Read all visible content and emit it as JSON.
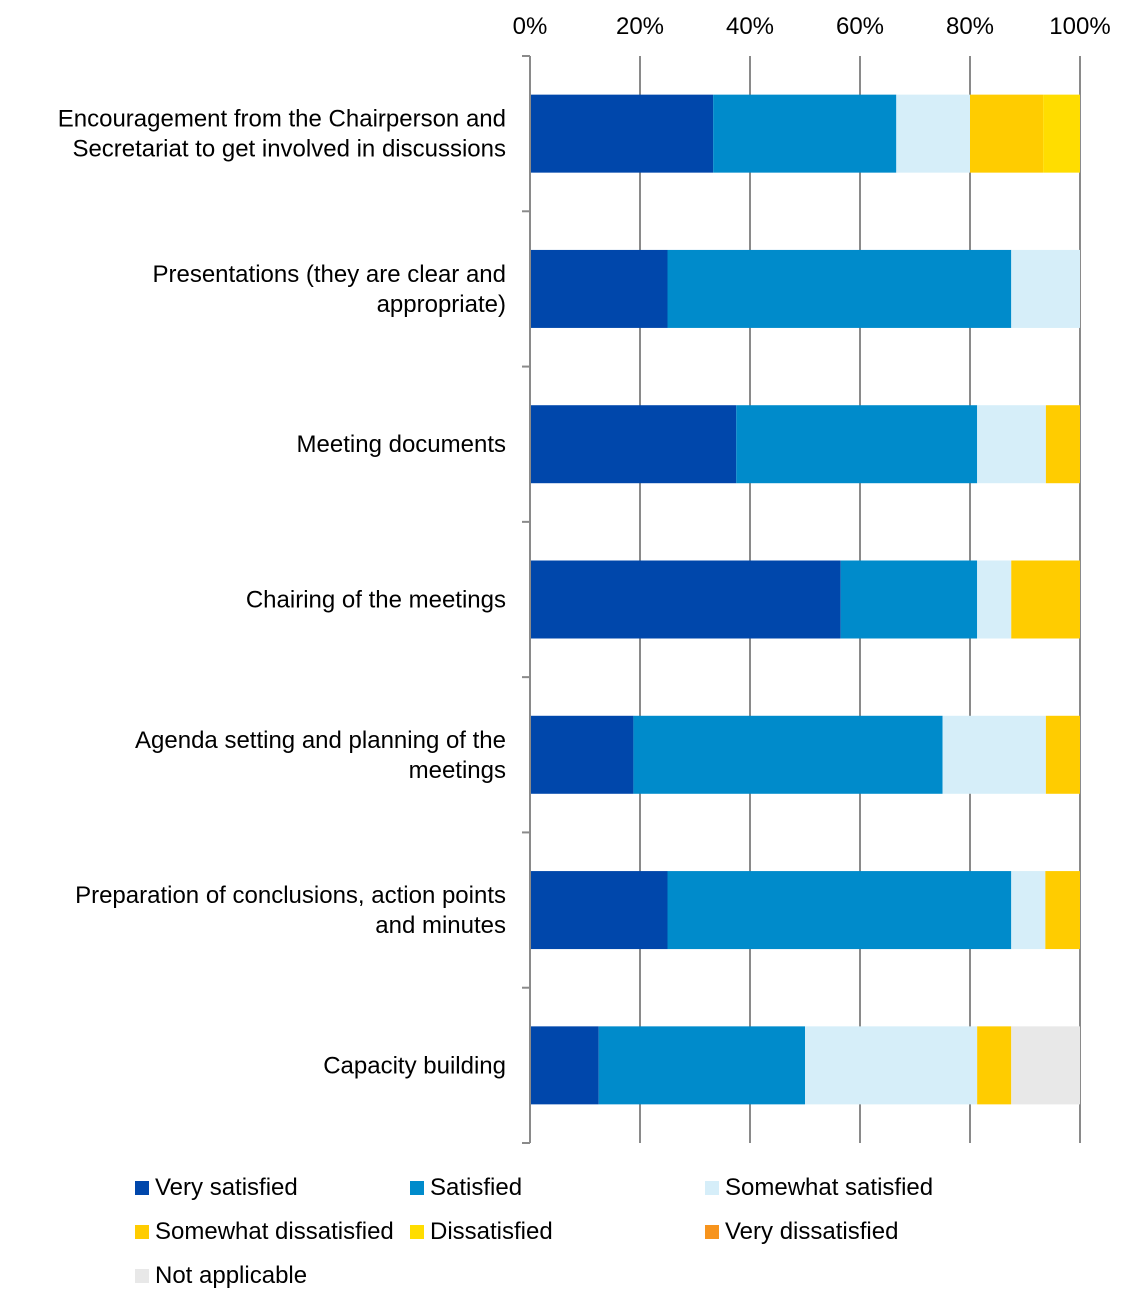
{
  "chart_data": {
    "type": "bar",
    "orientation": "horizontal",
    "stacked": "percent",
    "x_axis_position": "top",
    "xlim": [
      0,
      100
    ],
    "x_ticks": [
      "0%",
      "20%",
      "40%",
      "60%",
      "80%",
      "100%"
    ],
    "grid": true,
    "legend_position": "bottom",
    "categories": [
      [
        "Encouragement from the Chairperson and",
        "Secretariat to get involved in discussions"
      ],
      [
        "Presentations (they are clear and",
        "appropriate)"
      ],
      [
        "Meeting documents"
      ],
      [
        "Chairing of the meetings"
      ],
      [
        "Agenda setting and planning of the",
        "meetings"
      ],
      [
        "Preparation of conclusions, action points",
        "and minutes"
      ],
      [
        "Capacity building"
      ]
    ],
    "series": [
      {
        "name": "Very satisfied",
        "color": "#0047AB",
        "values": [
          33.3,
          25.0,
          37.5,
          56.5,
          18.8,
          25.0,
          12.5
        ]
      },
      {
        "name": "Satisfied",
        "color": "#008BCB",
        "values": [
          33.3,
          62.5,
          43.8,
          24.8,
          56.2,
          62.5,
          37.5
        ]
      },
      {
        "name": "Somewhat satisfied",
        "color": "#D6EEF9",
        "values": [
          13.4,
          12.5,
          12.5,
          6.2,
          18.8,
          6.2,
          31.3
        ]
      },
      {
        "name": "Somewhat dissatisfied",
        "color": "#FFCC00",
        "values": [
          13.3,
          0,
          6.2,
          12.5,
          6.2,
          6.3,
          6.2
        ]
      },
      {
        "name": "Dissatisfied",
        "color": "#FFDD00",
        "values": [
          6.7,
          0,
          0,
          0,
          0,
          0,
          0
        ]
      },
      {
        "name": "Very dissatisfied",
        "color": "#F7941D",
        "values": [
          0,
          0,
          0,
          0,
          0,
          0,
          0
        ]
      },
      {
        "name": "Not applicable",
        "color": "#E8E8E8",
        "values": [
          0,
          0,
          0,
          0,
          0,
          0,
          12.5
        ]
      }
    ]
  }
}
